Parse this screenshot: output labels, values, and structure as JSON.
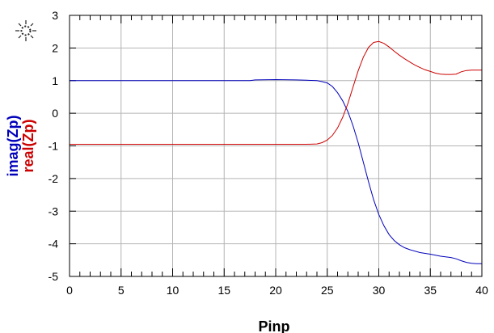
{
  "chart_data": {
    "type": "line",
    "xlabel": "Pinp",
    "ylabels": [
      {
        "text": "imag(Zp)",
        "color": "#0000bb"
      },
      {
        "text": "real(Zp)",
        "color": "#cc0000"
      }
    ],
    "xlim": [
      0,
      40
    ],
    "ylim": [
      -5,
      3
    ],
    "x_ticks": [
      0,
      5,
      10,
      15,
      20,
      25,
      30,
      35,
      40
    ],
    "x_tick_labels": [
      "0",
      "5",
      "10",
      "15",
      "20",
      "25",
      "30",
      "35",
      "40"
    ],
    "y_ticks": [
      3,
      2,
      1,
      0,
      -1,
      -2,
      -3,
      -4,
      -5
    ],
    "y_tick_labels": [
      "3",
      "2",
      "1",
      "0",
      "-1",
      "-2",
      "-3",
      "-4",
      "-5"
    ],
    "x_minor_step": 1,
    "grid": true,
    "series": [
      {
        "name": "imag(Zp)",
        "color": "#0000bb",
        "x": [
          0,
          5,
          10,
          15,
          17.5,
          18,
          20,
          22,
          23,
          24,
          24.5,
          25,
          25.5,
          26,
          26.5,
          27,
          27.5,
          28,
          28.5,
          29,
          29.5,
          30,
          30.5,
          31,
          31.5,
          32,
          32.5,
          33,
          34,
          35,
          36,
          37,
          37.5,
          38,
          38.5,
          39,
          39.5,
          40
        ],
        "y": [
          1.0,
          1.0,
          1.0,
          1.0,
          1.0,
          1.02,
          1.03,
          1.02,
          1.01,
          1.0,
          0.97,
          0.93,
          0.82,
          0.63,
          0.38,
          0.05,
          -0.38,
          -0.9,
          -1.5,
          -2.1,
          -2.65,
          -3.1,
          -3.45,
          -3.72,
          -3.9,
          -4.03,
          -4.12,
          -4.18,
          -4.27,
          -4.32,
          -4.38,
          -4.42,
          -4.46,
          -4.52,
          -4.57,
          -4.6,
          -4.61,
          -4.61
        ]
      },
      {
        "name": "real(Zp)",
        "color": "#cc0000",
        "x": [
          0,
          5,
          10,
          15,
          20,
          22,
          23,
          24,
          24.5,
          25,
          25.5,
          26,
          26.5,
          27,
          27.5,
          28,
          28.5,
          29,
          29.5,
          30,
          30.5,
          31,
          31.5,
          32,
          32.5,
          33,
          33.5,
          34,
          34.5,
          35,
          35.5,
          36,
          36.5,
          37,
          37.5,
          38,
          38.5,
          39,
          39.5,
          40
        ],
        "y": [
          -0.95,
          -0.95,
          -0.95,
          -0.95,
          -0.95,
          -0.95,
          -0.95,
          -0.94,
          -0.9,
          -0.82,
          -0.68,
          -0.45,
          -0.12,
          0.3,
          0.8,
          1.3,
          1.72,
          2.02,
          2.17,
          2.2,
          2.14,
          2.03,
          1.9,
          1.78,
          1.67,
          1.57,
          1.48,
          1.4,
          1.33,
          1.28,
          1.23,
          1.2,
          1.19,
          1.19,
          1.2,
          1.27,
          1.31,
          1.32,
          1.32,
          1.32
        ]
      }
    ]
  },
  "icons": {
    "corner": "marker-cursor-icon"
  }
}
